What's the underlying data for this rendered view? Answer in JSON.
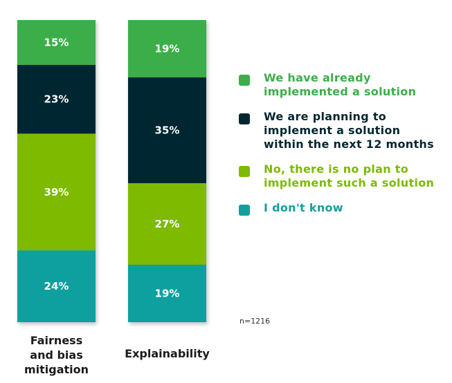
{
  "chart_data": {
    "type": "bar",
    "stacked": true,
    "percent": true,
    "categories": [
      "Fairness and bias mitigation",
      "Explainability"
    ],
    "category_lines": [
      [
        "Fairness",
        "and bias",
        "mitigation"
      ],
      [
        "Explainability"
      ]
    ],
    "series": [
      {
        "name": "We have already implemented a solution",
        "lines": [
          "We have already",
          "implemented a solution"
        ],
        "color": "#3bae49",
        "text_color": "#3bae49",
        "values": [
          15,
          19
        ]
      },
      {
        "name": "We are planning to implement a solution within the next 12 months",
        "lines": [
          "We are planning to",
          "implement a solution",
          "within the next 12 months"
        ],
        "color": "#042631",
        "text_color": "#042631",
        "values": [
          23,
          35
        ]
      },
      {
        "name": "No, there is no plan to implement such a solution",
        "lines": [
          "No, there is no plan to",
          "implement such a solution"
        ],
        "color": "#7dba00",
        "text_color": "#7dba00",
        "values": [
          39,
          27
        ]
      },
      {
        "name": "I don't know",
        "lines": [
          "I don't know"
        ],
        "color": "#11a09e",
        "text_color": "#11a09e",
        "values": [
          24,
          19
        ]
      }
    ],
    "value_labels": [
      [
        "15%",
        "23%",
        "39%",
        "24%"
      ],
      [
        "19%",
        "35%",
        "27%",
        "19%"
      ]
    ],
    "legend_position": "right",
    "grid": false
  },
  "note": "n=1216"
}
